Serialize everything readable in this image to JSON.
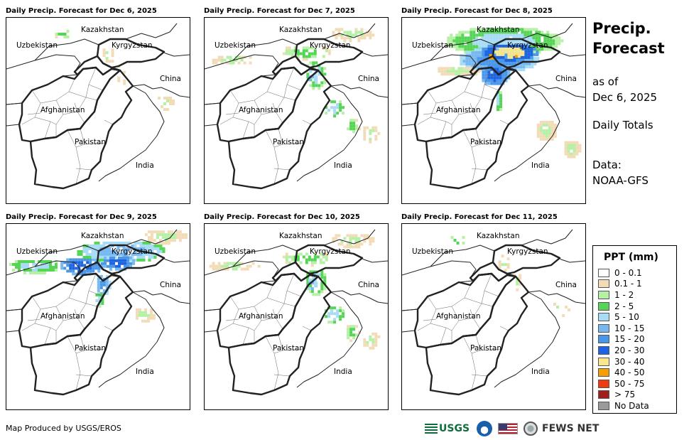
{
  "panels": [
    {
      "title": "Daily Precip. Forecast for Dec 6, 2025",
      "intensity": 0.35,
      "band": "light"
    },
    {
      "title": "Daily Precip. Forecast for Dec 7, 2025",
      "intensity": 0.5,
      "band": "green"
    },
    {
      "title": "Daily Precip. Forecast for Dec 8, 2025",
      "intensity": 1.0,
      "band": "heavy"
    },
    {
      "title": "Daily Precip. Forecast for Dec 9, 2025",
      "intensity": 0.85,
      "band": "west"
    },
    {
      "title": "Daily Precip. Forecast for Dec 10, 2025",
      "intensity": 0.6,
      "band": "green"
    },
    {
      "title": "Daily Precip. Forecast for Dec 11, 2025",
      "intensity": 0.15,
      "band": "light"
    }
  ],
  "map_labels": {
    "kazakhstan": "Kazakhstan",
    "uzbekistan": "Uzbekistan",
    "kyrgyzstan": "Kyrgyzstan",
    "china": "China",
    "afghanistan": "Afghanistan",
    "pakistan": "Pakistan",
    "india": "India"
  },
  "side": {
    "title_line1": "Precip.",
    "title_line2": "Forecast",
    "asof_line1": "as of",
    "asof_line2": "Dec 6, 2025",
    "totals": "Daily Totals",
    "data_line1": "Data:",
    "data_line2": "NOAA-GFS"
  },
  "legend": {
    "title": "PPT (mm)",
    "items": [
      {
        "label": "0 - 0.1",
        "color": "#ffffff"
      },
      {
        "label": "0.1 - 1",
        "color": "#f2dcb8"
      },
      {
        "label": "1 - 2",
        "color": "#b5f0a5"
      },
      {
        "label": "2 - 5",
        "color": "#55d455"
      },
      {
        "label": "5 - 10",
        "color": "#a8dcf5"
      },
      {
        "label": "10 - 15",
        "color": "#78b8f0"
      },
      {
        "label": "15 - 20",
        "color": "#4a96e8"
      },
      {
        "label": "20 - 30",
        "color": "#1e64e0"
      },
      {
        "label": "30 - 40",
        "color": "#fae68c"
      },
      {
        "label": "40 - 50",
        "color": "#f5a000"
      },
      {
        "label": "50 - 75",
        "color": "#f03c0a"
      },
      {
        "label": "> 75",
        "color": "#a01e1e"
      },
      {
        "label": "No Data",
        "color": "#9a9a9a"
      }
    ]
  },
  "footer": {
    "produced_by": "Map Produced by USGS/EROS",
    "logo_usgs": "USGS",
    "logo_fews": "FEWS NET"
  }
}
